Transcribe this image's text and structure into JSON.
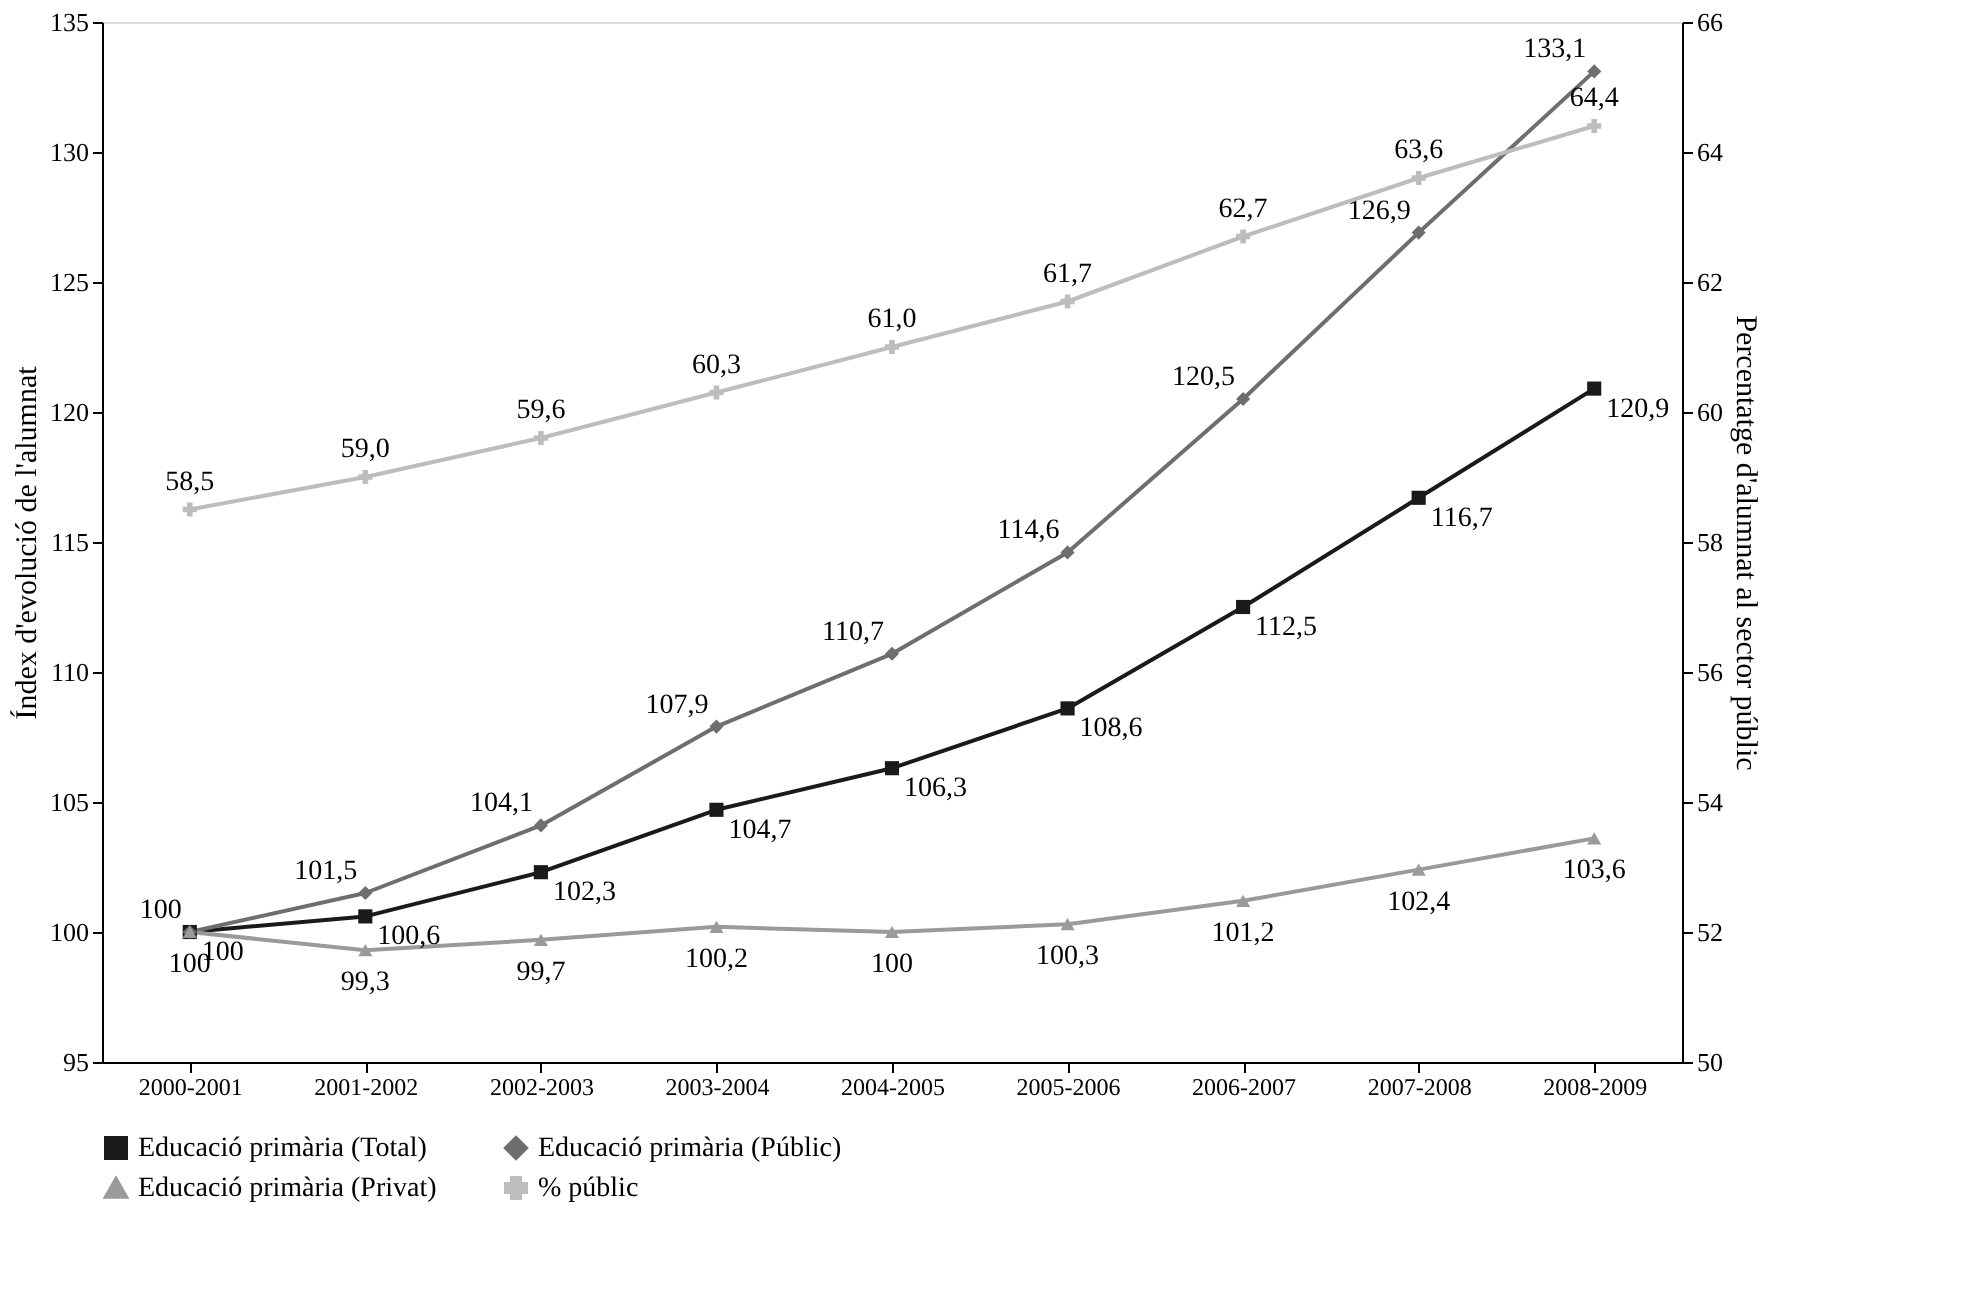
{
  "chart_data": {
    "type": "line",
    "categories": [
      "2000-2001",
      "2001-2002",
      "2002-2003",
      "2003-2004",
      "2004-2005",
      "2005-2006",
      "2006-2007",
      "2007-2008",
      "2008-2009"
    ],
    "ylabel": "Índex d'evolució de l'alumnat",
    "y2label": "Percentatge d'alumnat al sector públic",
    "ylim": [
      95,
      135
    ],
    "yticks": [
      95,
      100,
      105,
      110,
      115,
      120,
      125,
      130,
      135
    ],
    "y2lim": [
      50,
      66
    ],
    "y2ticks": [
      50,
      52,
      54,
      56,
      58,
      60,
      62,
      64,
      66
    ],
    "grid": false,
    "legend": "bottom",
    "line_style": "solid",
    "series": [
      {
        "name": "Educació primària (Total)",
        "color": "#1a1a1a",
        "marker": "square",
        "values": [
          100,
          100.6,
          102.3,
          104.7,
          106.3,
          108.6,
          112.5,
          116.7,
          120.9
        ],
        "value_labels": [
          "100",
          "100,6",
          "102,3",
          "104,7",
          "106,3",
          "108,6",
          "112,5",
          "116,7",
          "120,9"
        ]
      },
      {
        "name": "Educació primària (Públic)",
        "color": "#6e6e6e",
        "marker": "diamond",
        "values": [
          100,
          101.5,
          104.1,
          107.9,
          110.7,
          114.6,
          120.5,
          126.9,
          133.1
        ],
        "value_labels": [
          "100",
          "101,5",
          "104,1",
          "107,9",
          "110,7",
          "114,6",
          "120,5",
          "126,9",
          "133,1"
        ]
      },
      {
        "name": "Educació primària (Privat)",
        "color": "#9a9a9a",
        "marker": "triangle",
        "values": [
          100,
          99.3,
          99.7,
          100.2,
          100,
          100.3,
          101.2,
          102.4,
          103.6
        ],
        "value_labels": [
          "100",
          "99,3",
          "99,7",
          "100,2",
          "100",
          "100,3",
          "101,2",
          "102,4",
          "103,6"
        ]
      },
      {
        "name": "% públic",
        "color": "#bdbdbd",
        "marker": "cross",
        "axis": "y2",
        "values": [
          58.5,
          59.0,
          59.6,
          60.3,
          61.0,
          61.7,
          62.7,
          63.6,
          64.4
        ],
        "value_labels": [
          "58,5",
          "59,0",
          "59,6",
          "60,3",
          "61,0",
          "61,7",
          "62,7",
          "63,6",
          "64,4"
        ]
      }
    ]
  }
}
